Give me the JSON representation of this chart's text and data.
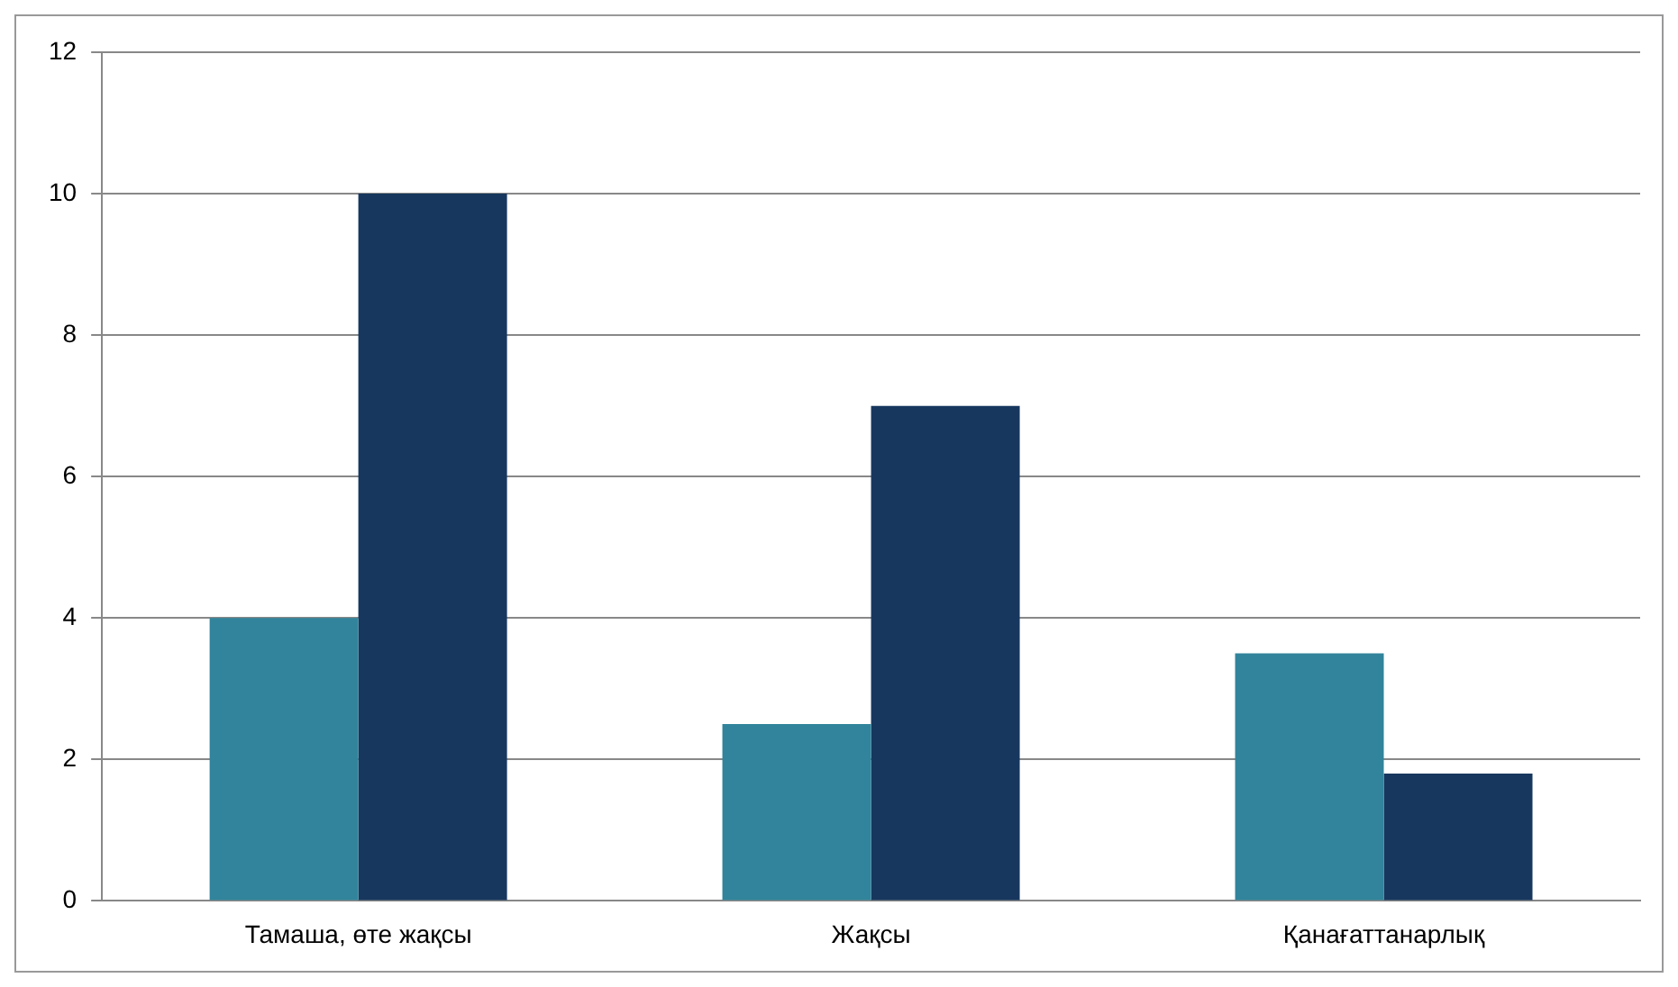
{
  "chart_data": {
    "type": "bar",
    "categories": [
      "Тамаша, өте жақсы",
      "Жақсы",
      "Қанағаттанарлық"
    ],
    "series": [
      {
        "color": "#31849b",
        "values": [
          4,
          2.5,
          3.5
        ]
      },
      {
        "color": "#17375e",
        "values": [
          10,
          7,
          1.8
        ]
      }
    ],
    "ylim": [
      0,
      12
    ],
    "yticks": [
      0,
      2,
      4,
      6,
      8,
      10,
      12
    ],
    "grid": "y",
    "legend": false
  }
}
